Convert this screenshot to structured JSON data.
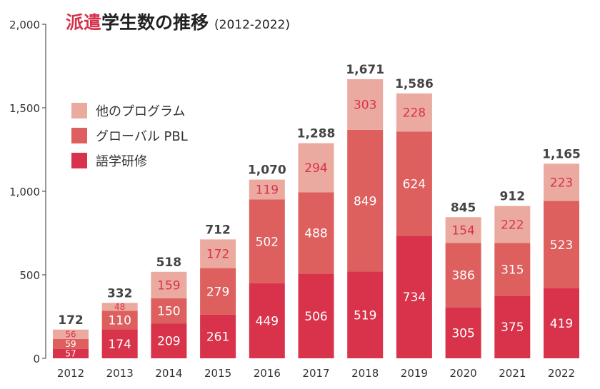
{
  "title": {
    "accent": "派遣",
    "main": "学生数の推移",
    "years": "(2012-2022)"
  },
  "colors": {
    "other": "#ebaa9f",
    "global": "#dd5f5e",
    "language": "#d8334a",
    "axis": "#333333",
    "total_text": "#444444",
    "inner_text": "#ffffff",
    "inner_text_on_light": "#d8334a"
  },
  "legend": [
    {
      "key": "other",
      "label": "他のプログラム"
    },
    {
      "key": "global",
      "label": "グローバル PBL"
    },
    {
      "key": "language",
      "label": "語学研修"
    }
  ],
  "chart_data": {
    "type": "bar",
    "stacked": true,
    "title": "派遣学生数の推移 (2012-2022)",
    "xlabel": "",
    "ylabel": "",
    "ylim": [
      0,
      2000
    ],
    "yticks": [
      0,
      500,
      1000,
      1500,
      2000
    ],
    "ytick_labels": [
      "0",
      "500",
      "1,000",
      "1,500",
      "2,000"
    ],
    "categories": [
      "2012",
      "2013",
      "2014",
      "2015",
      "2016",
      "2017",
      "2018",
      "2019",
      "2020",
      "2021",
      "2022"
    ],
    "series": [
      {
        "name": "語学研修",
        "key": "language",
        "values": [
          57,
          174,
          209,
          261,
          449,
          506,
          519,
          734,
          305,
          375,
          419
        ]
      },
      {
        "name": "グローバル PBL",
        "key": "global",
        "values": [
          59,
          110,
          150,
          279,
          502,
          488,
          849,
          624,
          386,
          315,
          523
        ]
      },
      {
        "name": "他のプログラム",
        "key": "other",
        "values": [
          56,
          48,
          159,
          172,
          119,
          294,
          303,
          228,
          154,
          222,
          223
        ]
      }
    ],
    "totals": [
      "172",
      "332",
      "518",
      "712",
      "1,070",
      "1,288",
      "1,671",
      "1,586",
      "845",
      "912",
      "1,165"
    ],
    "legend_position": "top-left"
  }
}
